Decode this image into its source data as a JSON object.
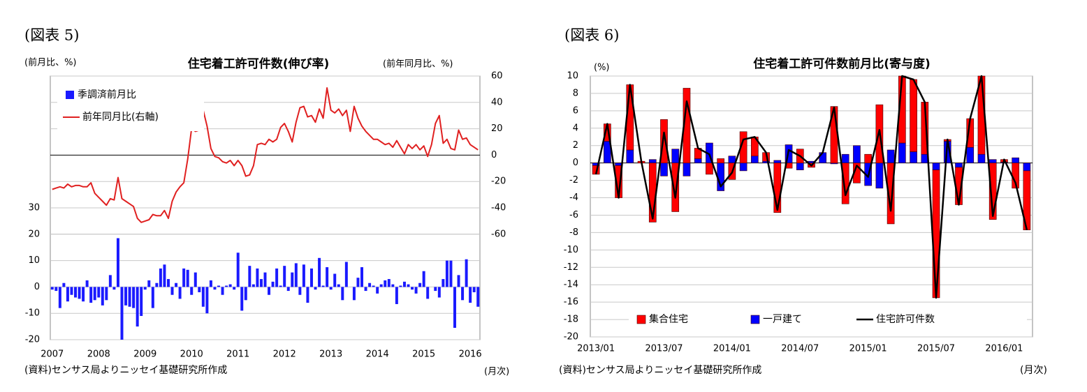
{
  "chart_data": [
    {
      "type": "combo",
      "figure_label": "(図表 5)",
      "title": "住宅着工許可件数(伸び率)",
      "y_label": "(前月比、%)",
      "y2_label": "(前年同月比、%)",
      "source": "(資料)センサス局よりニッセイ基礎研究所作成",
      "x_label": "(月次)",
      "categories": [
        "2007",
        null,
        null,
        null,
        null,
        null,
        null,
        null,
        null,
        null,
        null,
        null,
        "2008",
        null,
        null,
        null,
        null,
        null,
        null,
        null,
        null,
        null,
        null,
        null,
        "2009",
        null,
        null,
        null,
        null,
        null,
        null,
        null,
        null,
        null,
        null,
        null,
        "2010",
        null,
        null,
        null,
        null,
        null,
        null,
        null,
        null,
        null,
        null,
        null,
        "2011",
        null,
        null,
        null,
        null,
        null,
        null,
        null,
        null,
        null,
        null,
        null,
        "2012",
        null,
        null,
        null,
        null,
        null,
        null,
        null,
        null,
        null,
        null,
        null,
        "2013",
        null,
        null,
        null,
        null,
        null,
        null,
        null,
        null,
        null,
        null,
        null,
        "2014",
        null,
        null,
        null,
        null,
        null,
        null,
        null,
        null,
        null,
        null,
        null,
        "2015",
        null,
        null,
        null,
        null,
        null,
        null,
        null,
        null,
        null,
        null,
        null,
        "2016",
        null,
        null
      ],
      "series": [
        {
          "name": "季調済前月比",
          "type": "bar",
          "color": "#1a1aff",
          "values": [
            -1,
            -1.5,
            -8,
            1.5,
            -5.5,
            -3,
            -4,
            -4.5,
            -5.5,
            2.5,
            -6,
            -5,
            -4,
            -7,
            -5,
            4.5,
            -1,
            18.5,
            -20,
            -7,
            -7.5,
            -8,
            -15,
            -11,
            -1,
            2.5,
            -8,
            1.5,
            7,
            8.5,
            3,
            -3,
            1.5,
            -4.5,
            7,
            6.5,
            -3,
            5.5,
            -2,
            -7.5,
            -10,
            2.5,
            -1,
            0.5,
            -3,
            0.5,
            1,
            -1,
            13,
            -9,
            -5,
            8,
            1,
            7,
            3,
            5.5,
            -3,
            2,
            7,
            0.5,
            8,
            -1.5,
            5.5,
            9,
            -3,
            8.5,
            -6,
            7,
            -1,
            11,
            0.5,
            7.5,
            -1,
            5,
            1,
            -5,
            9.5,
            0,
            -5,
            3.5,
            7.5,
            -1.5,
            1.5,
            0.5,
            -2.5,
            1,
            2.5,
            3,
            1,
            -6.5,
            0.5,
            2,
            1,
            -1,
            -2.5,
            1.5,
            6,
            -4.5,
            0,
            -1.5,
            -4,
            3,
            10,
            10,
            -15.5,
            4.5,
            -5,
            10.5,
            -6,
            -2,
            -7.5
          ]
        },
        {
          "name": "前年同月比(右軸)",
          "type": "line",
          "axis": "y2",
          "color": "#e02020",
          "values": [
            -26,
            -25,
            -24,
            -25,
            -22,
            -24,
            -23,
            -23,
            -24,
            -24,
            -21,
            -29,
            -32,
            -35,
            -38,
            -33,
            -34,
            -17,
            -33,
            -35,
            -37,
            -39,
            -48,
            -51,
            -50,
            -49,
            -45,
            -46,
            -46,
            -42,
            -48,
            -35,
            -28,
            -24,
            -21,
            -3,
            20,
            18,
            19,
            34,
            22,
            5,
            -1,
            -2,
            -5,
            -6,
            -4,
            -8,
            -4,
            -8,
            -16,
            -15,
            -8,
            8,
            9,
            8,
            12,
            10,
            12,
            21,
            24,
            18,
            10,
            25,
            36,
            37,
            29,
            30,
            25,
            35,
            28,
            51,
            34,
            32,
            35,
            30,
            34,
            18,
            37,
            28,
            22,
            18,
            15,
            12,
            12,
            10,
            8,
            9,
            6,
            11,
            6,
            1,
            8,
            5,
            8,
            4,
            7,
            -1,
            8,
            24,
            30,
            9,
            12,
            5,
            4,
            19,
            12,
            13,
            8,
            6,
            4
          ]
        }
      ],
      "ylim": [
        -20,
        80
      ],
      "yticks": [
        -20,
        -10,
        0,
        10,
        20,
        30
      ],
      "y2lim": [
        -140,
        60
      ],
      "y2ticks": [
        -60,
        -40,
        -20,
        0,
        20,
        40,
        60
      ],
      "grid": true,
      "legend": "upper left"
    },
    {
      "type": "stacked_bar",
      "figure_label": "(図表 6)",
      "title": "住宅着工許可件数前月比(寄与度)",
      "y_label": "(%)",
      "source": "(資料)センサス局よりニッセイ基礎研究所作成",
      "x_label": "(月次)",
      "categories": [
        "2013/01",
        null,
        null,
        null,
        null,
        null,
        "2013/07",
        null,
        null,
        null,
        null,
        null,
        "2014/01",
        null,
        null,
        null,
        null,
        null,
        "2014/07",
        null,
        null,
        null,
        null,
        null,
        "2015/01",
        null,
        null,
        null,
        null,
        null,
        "2015/07",
        null,
        null,
        null,
        null,
        null,
        "2016/01",
        null,
        null
      ],
      "series": [
        {
          "name": "集合住宅",
          "type": "bar",
          "color": "#ff0000",
          "values": [
            -1,
            2,
            -3.7,
            7.5,
            0.2,
            -6.8,
            5,
            -5.6,
            8.6,
            1.2,
            -1.3,
            0.5,
            -1.9,
            3.6,
            2.2,
            1,
            -5.7,
            -0.6,
            1.6,
            -0.5,
            0,
            6.5,
            -4.7,
            -2.3,
            1,
            6.7,
            -7,
            7.7,
            8.3,
            6,
            -14.7,
            0.2,
            -4.3,
            3.3,
            9,
            -6.5,
            0.3,
            -2.9,
            -6.8
          ]
        },
        {
          "name": "一戸建て",
          "type": "bar",
          "color": "#0000ff",
          "values": [
            -0.3,
            2.5,
            -0.3,
            1.5,
            0,
            0.4,
            -1.5,
            1.6,
            -1.5,
            0.5,
            2.3,
            -3.2,
            0.8,
            -0.9,
            0.8,
            0.2,
            0.3,
            2.1,
            -0.8,
            0.2,
            1.2,
            -0.1,
            1,
            2,
            -2.6,
            -2.9,
            1.5,
            2.3,
            1.3,
            1,
            -0.8,
            2.5,
            -0.5,
            1.8,
            1,
            0.4,
            0.1,
            0.6,
            -0.9
          ]
        },
        {
          "name": "住宅許可件数",
          "type": "line",
          "color": "#000000",
          "values": [
            -1.3,
            4.5,
            -4,
            9,
            0.2,
            -6.4,
            3.5,
            -4,
            7.1,
            1.7,
            1,
            -2.7,
            -1.1,
            2.7,
            3,
            1.2,
            -5.4,
            1.5,
            0.8,
            -0.3,
            1.2,
            6.4,
            -3.7,
            -0.3,
            -1.6,
            3.8,
            -5.5,
            10,
            9.6,
            7,
            -15.5,
            2.7,
            -4.8,
            5.1,
            10,
            -6.1,
            0.4,
            -2.3,
            -7.7
          ]
        }
      ],
      "ylim": [
        -20,
        10
      ],
      "yticks": [
        -20,
        -18,
        -16,
        -14,
        -12,
        -10,
        -8,
        -6,
        -4,
        -2,
        0,
        2,
        4,
        6,
        8,
        10
      ],
      "grid": true,
      "legend": "lower center"
    }
  ]
}
